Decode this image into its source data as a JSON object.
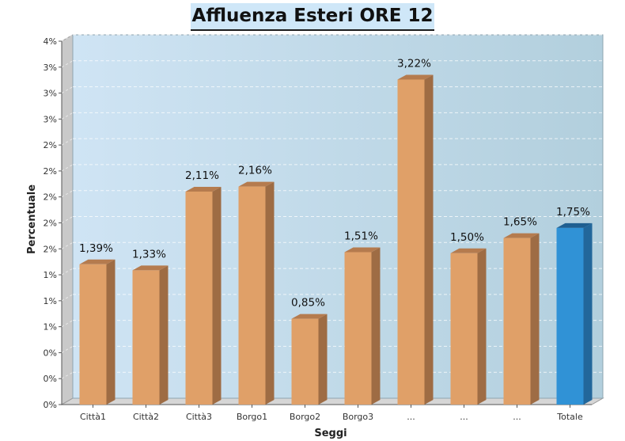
{
  "chart_data": {
    "type": "bar",
    "title": "Affluenza Esteri ORE 12",
    "xlabel": "Seggi",
    "ylabel": "Percentuale",
    "y_tick_labels": [
      "0%",
      "0%",
      "0%",
      "1%",
      "1%",
      "1%",
      "2%",
      "2%",
      "2%",
      "2%",
      "2%",
      "3%",
      "3%",
      "3%",
      "4%"
    ],
    "ylim": [
      0,
      3.6
    ],
    "grid": true,
    "categories": [
      "Città1",
      "Città2",
      "Città3",
      "Borgo1",
      "Borgo2",
      "Borgo3",
      "...",
      "...",
      "...",
      "Totale"
    ],
    "values": [
      1.39,
      1.33,
      2.11,
      2.16,
      0.85,
      1.51,
      3.22,
      1.5,
      1.65,
      1.75
    ],
    "data_labels": [
      "1,39%",
      "1,33%",
      "2,11%",
      "2,16%",
      "0,85%",
      "1,51%",
      "3,22%",
      "1,50%",
      "1,65%",
      "1,75%"
    ],
    "colors": {
      "bar": "#e0a068",
      "bar_side": "#9e6c44",
      "bar_top": "#b57b4e",
      "highlight_bar": "#3092d6",
      "highlight_side": "#22679b",
      "highlight_top": "#1f5f91",
      "highlight_category": "Totale",
      "plot_bg_left": "#cfe4f4",
      "plot_bg_right": "#b2cfdd"
    }
  }
}
